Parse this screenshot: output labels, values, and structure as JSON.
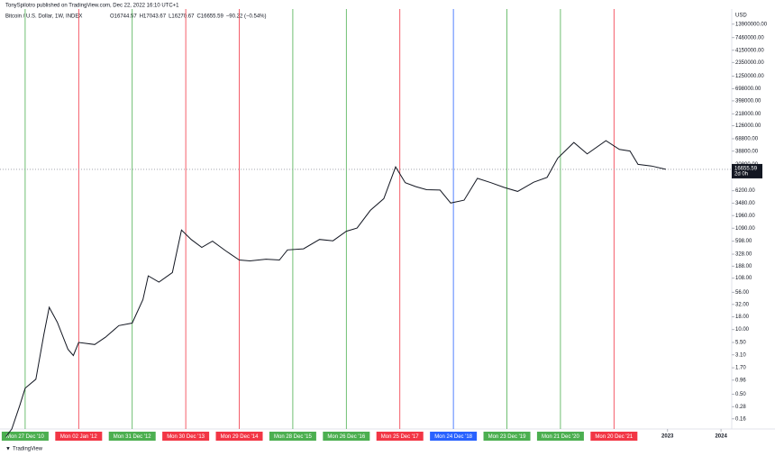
{
  "publisher": "TonySpilotro published on TradingView.com, Dec 22, 2022 16:10 UTC+1",
  "brand": "TradingView",
  "chart_data": {
    "type": "line",
    "title": "Bitcoin / U.S. Dollar, 1W, INDEX",
    "ohlc": [
      "O16744.57",
      "H17043.67",
      "L16270.67",
      "C16655.59",
      "−90.22 (−0.54%)"
    ],
    "y_unit": "USD",
    "log_scale": true,
    "xlim": [
      2010.53,
      2024.2
    ],
    "xticks": [
      2023,
      2024
    ],
    "ylim": [
      0.1,
      28000000
    ],
    "yticks": [
      {
        "value": 13900000,
        "label": "13900000.00"
      },
      {
        "value": 7460000,
        "label": "7460000.00"
      },
      {
        "value": 4150000,
        "label": "4150000.00"
      },
      {
        "value": 2350000,
        "label": "2350000.00"
      },
      {
        "value": 1250000,
        "label": "1250000.00"
      },
      {
        "value": 698000,
        "label": "698000.00"
      },
      {
        "value": 398000,
        "label": "398000.00"
      },
      {
        "value": 218000,
        "label": "218000.00"
      },
      {
        "value": 126000,
        "label": "126000.00"
      },
      {
        "value": 68800,
        "label": "68800.00"
      },
      {
        "value": 38800,
        "label": "38800.00"
      },
      {
        "value": 20800,
        "label": "20800.00"
      },
      {
        "value": 6200,
        "label": "6200.00"
      },
      {
        "value": 3480,
        "label": "3480.00"
      },
      {
        "value": 1960,
        "label": "1960.00"
      },
      {
        "value": 1090,
        "label": "1090.00"
      },
      {
        "value": 598,
        "label": "598.00"
      },
      {
        "value": 328,
        "label": "328.00"
      },
      {
        "value": 188,
        "label": "188.00"
      },
      {
        "value": 108,
        "label": "108.00"
      },
      {
        "value": 56,
        "label": "56.00"
      },
      {
        "value": 32,
        "label": "32.00"
      },
      {
        "value": 18,
        "label": "18.00"
      },
      {
        "value": 10,
        "label": "10.00"
      },
      {
        "value": 5.5,
        "label": "5.50"
      },
      {
        "value": 3.1,
        "label": "3.10"
      },
      {
        "value": 1.7,
        "label": "1.70"
      },
      {
        "value": 0.96,
        "label": "0.96"
      },
      {
        "value": 0.5,
        "label": "0.50"
      },
      {
        "value": 0.28,
        "label": "0.28"
      },
      {
        "value": 0.16,
        "label": "0.16"
      }
    ],
    "series": [
      {
        "name": "BTCUSD",
        "color": "#131722",
        "x": [
          2010.64,
          2010.75,
          2010.9,
          2011.0,
          2011.2,
          2011.35,
          2011.45,
          2011.6,
          2011.8,
          2011.9,
          2012.0,
          2012.3,
          2012.5,
          2012.75,
          2013.0,
          2013.2,
          2013.3,
          2013.5,
          2013.75,
          2013.92,
          2014.1,
          2014.3,
          2014.5,
          2014.75,
          2015.0,
          2015.2,
          2015.5,
          2015.75,
          2015.9,
          2016.2,
          2016.5,
          2016.75,
          2017.0,
          2017.2,
          2017.45,
          2017.7,
          2017.92,
          2018.1,
          2018.3,
          2018.5,
          2018.75,
          2018.95,
          2019.2,
          2019.45,
          2019.7,
          2019.95,
          2020.2,
          2020.5,
          2020.75,
          2020.95,
          2021.25,
          2021.5,
          2021.85,
          2022.1,
          2022.3,
          2022.45,
          2022.7,
          2022.97
        ],
        "values": [
          0.07,
          0.1,
          0.3,
          0.66,
          1.0,
          8,
          28,
          14,
          4,
          3,
          5.5,
          5,
          7,
          12,
          13.5,
          40,
          120,
          90,
          140,
          1000,
          650,
          450,
          600,
          380,
          250,
          240,
          260,
          250,
          400,
          420,
          650,
          610,
          950,
          1100,
          2500,
          4300,
          18700,
          9000,
          7500,
          6500,
          6400,
          3500,
          4000,
          11000,
          9000,
          7200,
          6000,
          9200,
          11500,
          28000,
          58000,
          34000,
          63000,
          42000,
          39000,
          21000,
          19500,
          16655.59
        ]
      }
    ],
    "last_price": 16655.59,
    "countdown": "2d 0h",
    "markers": [
      {
        "x": 2011.0,
        "label": "Mon 27 Dec '10",
        "color": "#4caf50"
      },
      {
        "x": 2012.0,
        "label": "Mon 02 Jan '12",
        "color": "#f23645"
      },
      {
        "x": 2013.0,
        "label": "Mon 31 Dec '12",
        "color": "#4caf50"
      },
      {
        "x": 2014.0,
        "label": "Mon 30 Dec '13",
        "color": "#f23645"
      },
      {
        "x": 2015.0,
        "label": "Mon 29 Dec '14",
        "color": "#f23645"
      },
      {
        "x": 2016.0,
        "label": "Mon 28 Dec '15",
        "color": "#4caf50"
      },
      {
        "x": 2017.0,
        "label": "Mon 26 Dec '16",
        "color": "#4caf50"
      },
      {
        "x": 2018.0,
        "label": "Mon 25 Dec '17",
        "color": "#f23645"
      },
      {
        "x": 2019.0,
        "label": "Mon 24 Dec '18",
        "color": "#2962ff"
      },
      {
        "x": 2020.0,
        "label": "Mon 23 Dec '19",
        "color": "#4caf50"
      },
      {
        "x": 2021.0,
        "label": "Mon 21 Dec '20",
        "color": "#4caf50"
      },
      {
        "x": 2022.0,
        "label": "Mon 20 Dec '21",
        "color": "#f23645"
      }
    ]
  }
}
